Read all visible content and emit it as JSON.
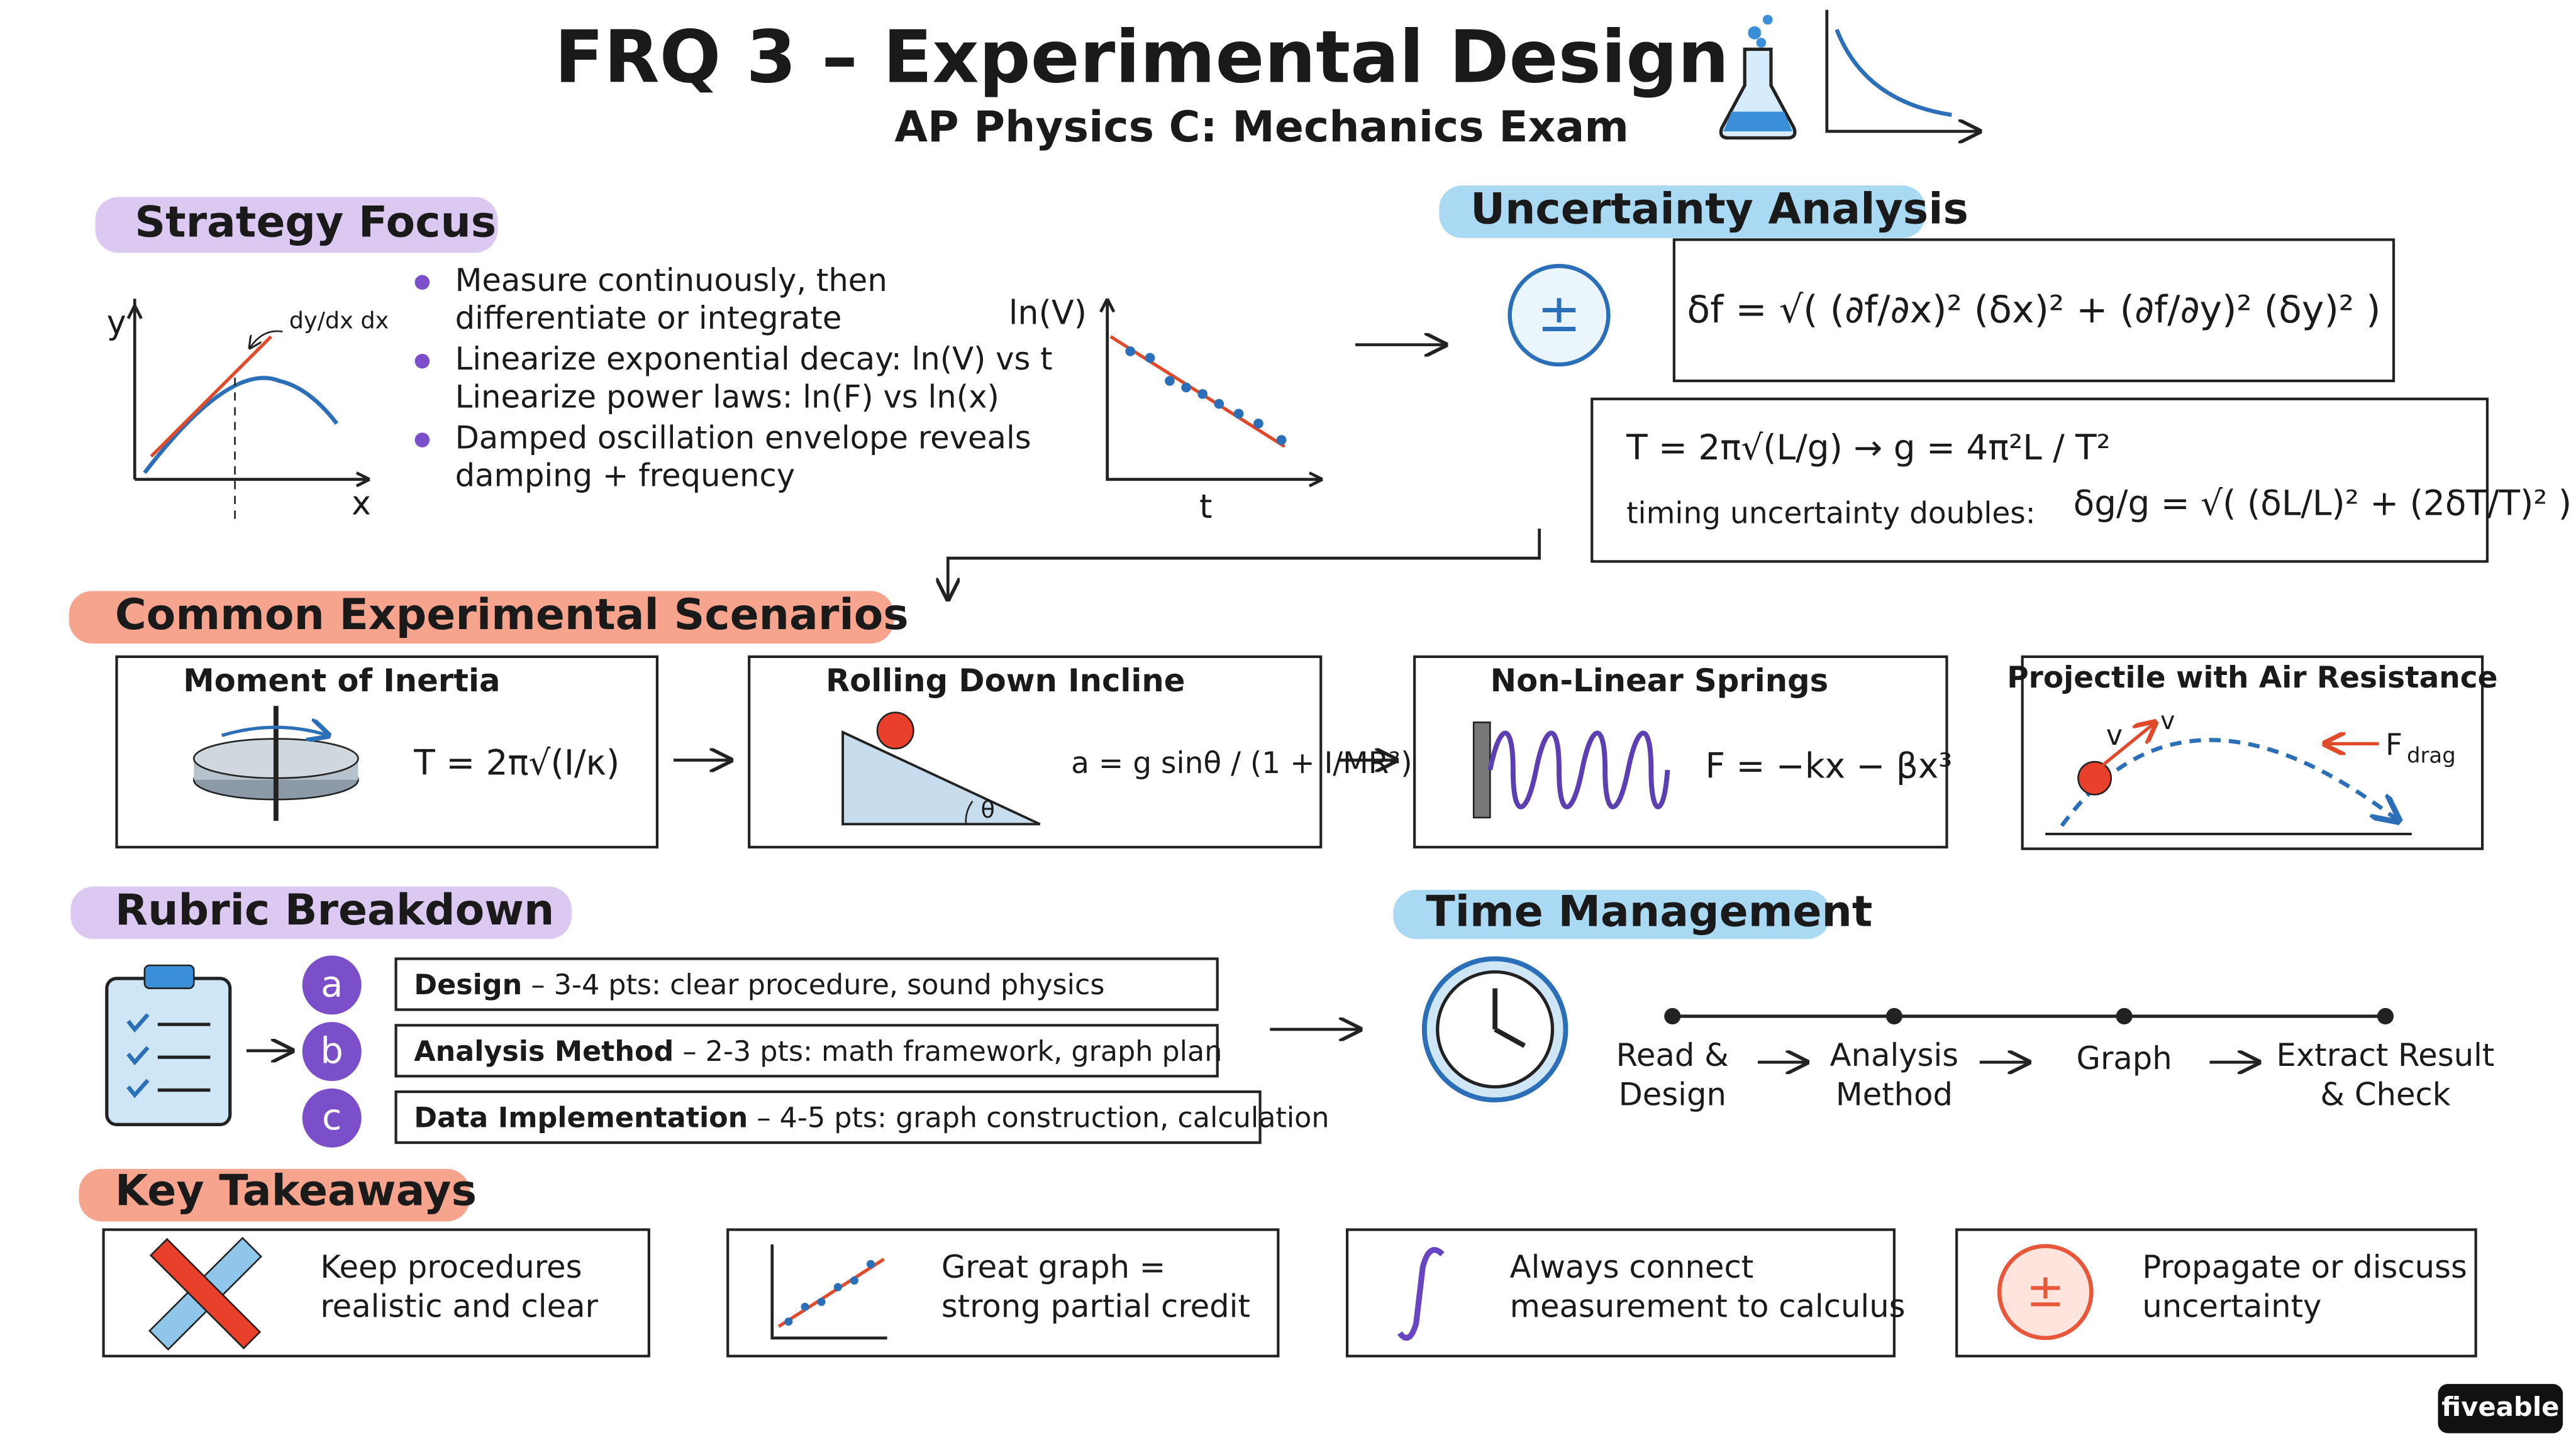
{
  "header": {
    "title": "FRQ 3 – Experimental Design",
    "subtitle": "AP Physics C: Mechanics Exam"
  },
  "strategy": {
    "title": "Strategy Focus",
    "graph1": {
      "y_label": "y",
      "x_label": "x",
      "annotation": "dy/dx dx"
    },
    "bullets": [
      [
        "Measure continuously, then",
        "differentiate or integrate"
      ],
      [
        "Linearize exponential decay: ln(V) vs t",
        "Linearize power laws: ln(F) vs ln(x)"
      ],
      [
        "Damped oscillation envelope reveals",
        "damping + frequency"
      ]
    ],
    "graph2": {
      "y_label": "ln(V)",
      "x_label": "t"
    }
  },
  "uncertainty": {
    "title": "Uncertainty Analysis",
    "symbol": "±",
    "formula": "δf = √( (∂f/∂x)² (δx)² + (∂f/∂y)² (δy)² )",
    "pendulum": "T = 2π√(L/g)  →  g = 4π²L / T²",
    "note": "timing uncertainty doubles:",
    "relative": "δg/g = √( (δL/L)² + (2δT/T)² )"
  },
  "scenarios": {
    "title": "Common Experimental Scenarios",
    "cards": [
      {
        "title": "Moment of Inertia",
        "formula": "T = 2π√(I/κ)"
      },
      {
        "title": "Rolling Down Incline",
        "formula": "a = g sinθ / (1 + I/MR²)",
        "angle": "θ"
      },
      {
        "title": "Non-Linear Springs",
        "formula": "F = −kx − βx³"
      },
      {
        "title": "Projectile with Air Resistance",
        "labels": [
          "v",
          "v"
        ],
        "force": "F",
        "force_sub": "drag"
      }
    ]
  },
  "rubric": {
    "title": "Rubric Breakdown",
    "items": [
      {
        "letter": "a",
        "label": "Design",
        "detail": " – 3-4 pts: clear procedure, sound physics"
      },
      {
        "letter": "b",
        "label": "Analysis Method",
        "detail": " – 2-3 pts: math framework, graph plan"
      },
      {
        "letter": "c",
        "label": "Data Implementation",
        "detail": " – 4-5 pts: graph construction, calculation"
      }
    ]
  },
  "time": {
    "title": "Time Management",
    "steps": [
      [
        "Read &",
        "Design"
      ],
      [
        "Analysis",
        "Method"
      ],
      [
        "Graph"
      ],
      [
        "Extract Result",
        "& Check"
      ]
    ]
  },
  "takeaways": {
    "title": "Key Takeaways",
    "items": [
      [
        "Keep procedures",
        "realistic and clear"
      ],
      [
        "Great graph =",
        "strong partial credit"
      ],
      [
        "Always connect",
        "measurement to calculus"
      ],
      [
        "Propagate or discuss",
        "uncertainty"
      ]
    ],
    "icon_symbol": "±"
  },
  "footer": {
    "brand": "fiveable"
  }
}
